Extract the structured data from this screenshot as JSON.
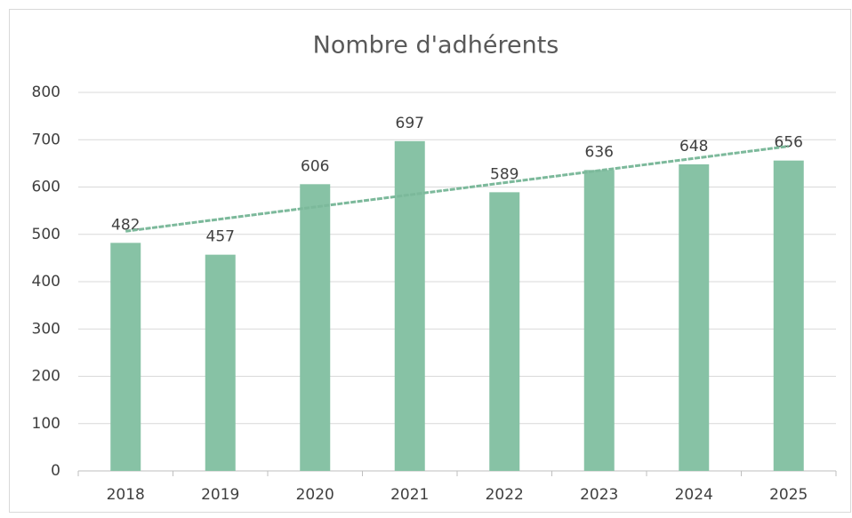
{
  "chart_data": {
    "type": "bar",
    "title": "Nombre d'adhérents",
    "categories": [
      "2018",
      "2019",
      "2020",
      "2021",
      "2022",
      "2023",
      "2024",
      "2025"
    ],
    "values": [
      482,
      457,
      606,
      697,
      589,
      636,
      648,
      656
    ],
    "color": "#87c2a5",
    "ylim": [
      0,
      800
    ],
    "yticks": [
      0,
      100,
      200,
      300,
      400,
      500,
      600,
      700,
      800
    ],
    "grid": true,
    "trendline": "linear",
    "trendline_color": "#7cb99b"
  }
}
